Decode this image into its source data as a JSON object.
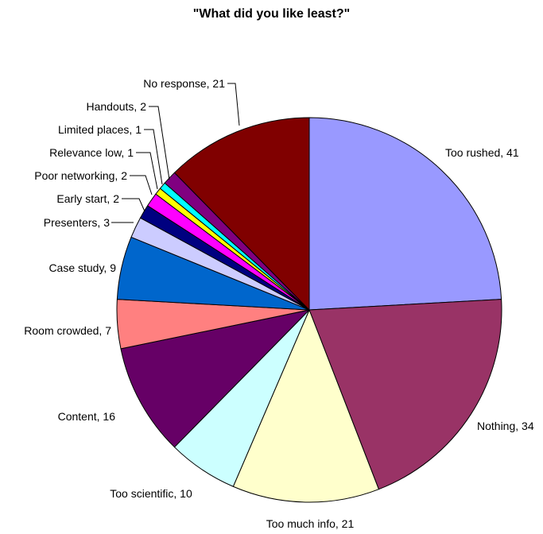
{
  "chart_data": {
    "type": "pie",
    "title": "\"What did you like least?\"",
    "slices": [
      {
        "label": "Too rushed",
        "value": 41,
        "color": "#9999ff",
        "display": "Too rushed, 41"
      },
      {
        "label": "Nothing",
        "value": 34,
        "color": "#993366",
        "display": "Nothing, 34"
      },
      {
        "label": "Too much info",
        "value": 21,
        "color": "#ffffcc",
        "display": "Too much info, 21"
      },
      {
        "label": "Too scientific",
        "value": 10,
        "color": "#ccffff",
        "display": "Too scientific, 10"
      },
      {
        "label": "Content",
        "value": 16,
        "color": "#660066",
        "display": "Content, 16"
      },
      {
        "label": "Room crowded",
        "value": 7,
        "color": "#ff8080",
        "display": "Room crowded, 7"
      },
      {
        "label": "Case study",
        "value": 9,
        "color": "#0066cc",
        "display": "Case study, 9"
      },
      {
        "label": "Presenters",
        "value": 3,
        "color": "#ccccff",
        "display": "Presenters, 3"
      },
      {
        "label": "Early start",
        "value": 2,
        "color": "#000080",
        "display": "Early start, 2"
      },
      {
        "label": "Poor networking",
        "value": 2,
        "color": "#ff00ff",
        "display": "Poor networking, 2"
      },
      {
        "label": "Relevance low",
        "value": 1,
        "color": "#ffff00",
        "display": "Relevance low, 1"
      },
      {
        "label": "Limited places",
        "value": 1,
        "color": "#00ffff",
        "display": "Limited places, 1"
      },
      {
        "label": "Handouts",
        "value": 2,
        "color": "#800080",
        "display": "Handouts, 2"
      },
      {
        "label": "No response",
        "value": 21,
        "color": "#800000",
        "display": "No response, 21"
      }
    ]
  }
}
